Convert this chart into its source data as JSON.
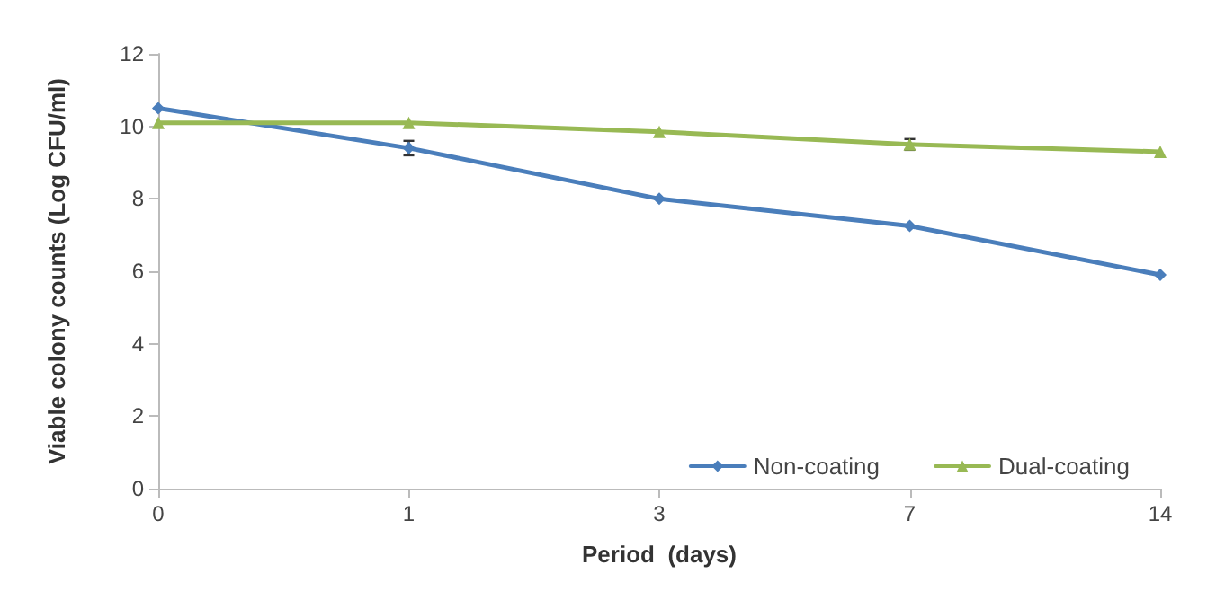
{
  "chart_data": {
    "type": "line",
    "xlabel": "Period  (days)",
    "ylabel": "Viable colony counts (Log CFU/ml)",
    "categories": [
      "0",
      "1",
      "3",
      "7",
      "14"
    ],
    "ylim": [
      0,
      12
    ],
    "yticks": [
      0,
      2,
      4,
      6,
      8,
      10,
      12
    ],
    "grid": false,
    "legend": "bottom right",
    "series": [
      {
        "name": "Non-coating",
        "color": "#4a7ebb",
        "marker": "diamond",
        "values": [
          10.5,
          9.4,
          8.0,
          7.25,
          5.9
        ],
        "errors": [
          null,
          0.2,
          null,
          null,
          null
        ]
      },
      {
        "name": "Dual-coating",
        "color": "#98b954",
        "marker": "triangle",
        "values": [
          10.1,
          10.1,
          9.85,
          9.5,
          9.3
        ],
        "errors": [
          null,
          null,
          null,
          0.15,
          null
        ]
      }
    ]
  }
}
